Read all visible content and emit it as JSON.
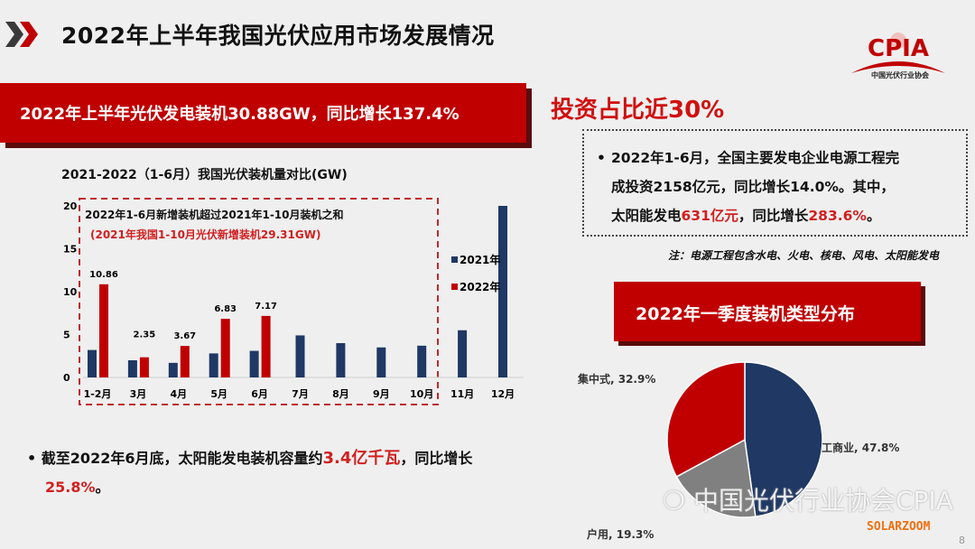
{
  "title": "2022年上半年我国光伏应用市场发展情况",
  "banner1": "2022年上半年光伏发电装机30.88GW，同比增长137.4%",
  "invest": {
    "headline": "投资占比近30%",
    "line1": "2022年1-6月，全国主要发电企业电源工程完",
    "line2": "成投资2158亿元，同比增长14.0%。其中，",
    "line3a": "太阳能发电",
    "line3b": "631亿元",
    "line3c": "，同比增长",
    "line3d": "283.6%",
    "line3e": "。",
    "note": "注：电源工程包含水电、火电、核电、风电、太阳能发电"
  },
  "pie_banner": "2022年一季度装机类型分布",
  "bullet": {
    "a": "截至2022年6月底，太阳能发电装机容量约",
    "b": "3.4亿千瓦",
    "c": "，同比增长",
    "d": "25.8%",
    "e": "。"
  },
  "logo": {
    "text": "CPIA",
    "sub": "中国光伏行业协会"
  },
  "watermark": "中国光伏行业协会CPIA",
  "solarzoom": "SOLARZOOM",
  "page_number": "8",
  "colors": {
    "red": "#c00000",
    "navy": "#1f3864",
    "grey": "#808080"
  },
  "chart_data": [
    {
      "type": "bar",
      "title": "2021-2022（1-6月）我国光伏装机量对比(GW)",
      "categories": [
        "1-2月",
        "3月",
        "4月",
        "5月",
        "6月",
        "7月",
        "8月",
        "9月",
        "10月",
        "11月",
        "12月"
      ],
      "series": [
        {
          "name": "2021年",
          "color": "#1f3864",
          "values": [
            3.2,
            2.0,
            1.7,
            2.8,
            3.1,
            4.9,
            4.0,
            3.5,
            3.7,
            5.5,
            20.0
          ]
        },
        {
          "name": "2022年",
          "color": "#c00000",
          "values": [
            10.86,
            2.35,
            3.67,
            6.83,
            7.17,
            null,
            null,
            null,
            null,
            null,
            null
          ]
        }
      ],
      "data_labels": [
        "10.86",
        "2.35",
        "3.67",
        "6.83",
        "7.17"
      ],
      "yticks": [
        0,
        5,
        10,
        15,
        20
      ],
      "ylim": [
        0,
        20
      ],
      "legend": "right",
      "annotation1": "2022年1-6月新增装机超过2021年1-10月装机之和",
      "annotation2": "(2021年我国1-10月光伏新增装机29.31GW)"
    },
    {
      "type": "pie",
      "slices": [
        {
          "label": "工商业, 47.8%",
          "value": 47.8,
          "color": "#1f3864"
        },
        {
          "label": "户用, 19.3%",
          "value": 19.3,
          "color": "#808080"
        },
        {
          "label": "集中式, 32.9%",
          "value": 32.9,
          "color": "#c00000"
        }
      ]
    }
  ]
}
